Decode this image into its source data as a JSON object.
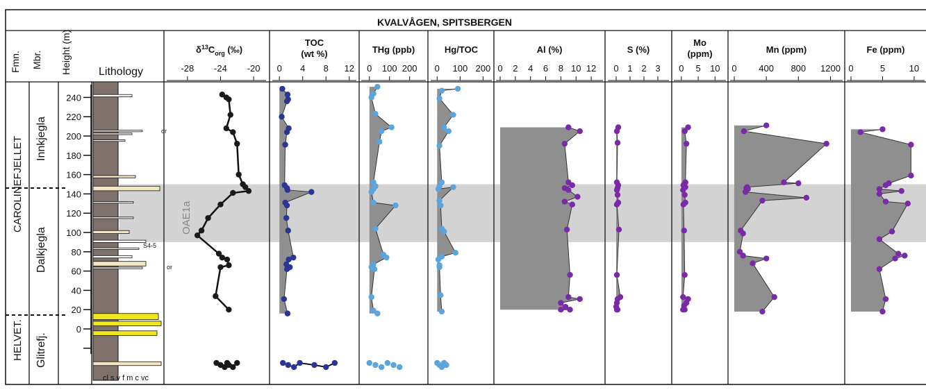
{
  "title": "KVALVÅGEN, SPITSBERGEN",
  "columns": {
    "fmn": "Fmn.",
    "mbr": "Mbr.",
    "height": "Height (m)",
    "lithology": "Lithology"
  },
  "formations": [
    "CAROLINEFJELLET",
    "HELVET."
  ],
  "members": [
    "Innkjegla",
    "Dalkjegla",
    "Glitrefj."
  ],
  "oae_label": "OAE1a",
  "grain_size_scale": "cl s v f m c vc",
  "height_ticks": [
    "240",
    "220",
    "200",
    "180",
    "160",
    "140",
    "120",
    "100",
    "80",
    "60",
    "40",
    "20",
    "0"
  ],
  "fossil_label": "or",
  "sulfur_label": "S4-5",
  "colors": {
    "d13c": "#1a1a1a",
    "toc": "#2b3596",
    "hg": "#5ba4dc",
    "elements": "#7a2aa6",
    "fill": "#8f8f8f",
    "oae_band": "#d3d3d3",
    "mudstone": "#7e716c",
    "sandstone": "#f0e81c"
  },
  "chart_data": {
    "type": "line",
    "y_axis": {
      "label": "Height (m)",
      "range": [
        -30,
        250
      ]
    },
    "oae_interval_m": [
      90,
      150
    ],
    "panels": [
      {
        "key": "d13c",
        "label_main": "δ",
        "label_sup": "13",
        "label_c": "C",
        "label_sub": "org",
        "label_tail": " (‰)",
        "xlim": [
          -30,
          -19
        ],
        "ticks": [
          "-28",
          "-24",
          "-20"
        ],
        "tick_values": [
          -28,
          -24,
          -20
        ],
        "x": [
          -23.8,
          -23.3,
          -23.0,
          -22.8,
          -23.3,
          -22.5,
          -22.0,
          -21.8,
          -21.3,
          -21.0,
          -20.6,
          -22.5,
          -24.0,
          -25.5,
          -26.3,
          -26.8,
          -24.2,
          -23.8,
          -23.2,
          -23.0,
          -24.0,
          -24.6,
          -23.0
        ],
        "y": [
          243,
          240,
          238,
          222,
          208,
          204,
          192,
          160,
          150,
          147,
          143,
          141,
          129,
          115,
          102,
          97,
          78,
          74,
          72,
          66,
          64,
          34,
          20
        ],
        "glitrefjellet_x": [
          -24.5,
          -24.0,
          -23.5,
          -23.2,
          -23.0,
          -22.5,
          -22.0
        ]
      },
      {
        "key": "toc",
        "label_main": "TOC",
        "label_sub2": "(wt %)",
        "xlim": [
          -0.5,
          12.5
        ],
        "ticks": [
          "0",
          "4",
          "8",
          "12"
        ],
        "tick_values": [
          0,
          4,
          8,
          12
        ],
        "x": [
          0.5,
          1.4,
          1.5,
          1.3,
          0.4,
          1.6,
          1.3,
          1.0,
          0.9,
          1.3,
          1.4,
          5.5,
          1.0,
          1.3,
          1.2,
          1.5,
          2.4,
          1.6,
          1.2,
          1.8,
          1.3,
          0.8,
          1.4
        ],
        "y": [
          249,
          243,
          238,
          236,
          220,
          208,
          204,
          191,
          149,
          146,
          144,
          142,
          131,
          128,
          115,
          102,
          74,
          72,
          67,
          64,
          62,
          31,
          16
        ],
        "glitrefjellet_x": [
          0.6,
          1.5,
          2.5,
          3.5,
          6.0,
          8.0,
          9.5
        ]
      },
      {
        "key": "thg",
        "label_main": "THg (ppb)",
        "xlim": [
          -20,
          260
        ],
        "ticks": [
          "0",
          "100",
          "200"
        ],
        "tick_values": [
          0,
          100,
          200
        ],
        "x": [
          40,
          20,
          10,
          30,
          110,
          60,
          50,
          20,
          30,
          20,
          10,
          20,
          130,
          30,
          70,
          85,
          20,
          10,
          25,
          10,
          20,
          40
        ],
        "y": [
          251,
          244,
          240,
          223,
          209,
          205,
          194,
          152,
          148,
          145,
          142,
          131,
          128,
          104,
          77,
          74,
          67,
          64,
          62,
          33,
          19,
          16
        ],
        "glitrefjellet_x": [
          0,
          30,
          60,
          90,
          120,
          150
        ]
      },
      {
        "key": "hgtoc",
        "label_main": "Hg/TOC",
        "xlim": [
          -10,
          220
        ],
        "ticks": [
          "0",
          "100",
          "200"
        ],
        "tick_values": [
          0,
          100,
          200
        ],
        "x": [
          90,
          20,
          10,
          70,
          30,
          50,
          10,
          20,
          10,
          5,
          70,
          10,
          15,
          20,
          30,
          80,
          20,
          5,
          10,
          10,
          15,
          20
        ],
        "y": [
          249,
          247,
          239,
          222,
          209,
          205,
          190,
          152,
          148,
          145,
          147,
          133,
          128,
          104,
          101,
          79,
          75,
          72,
          66,
          64,
          35,
          18
        ],
        "glitrefjellet_x": [
          0,
          10,
          20,
          30,
          40
        ]
      },
      {
        "key": "al",
        "label_main": "Al (%)",
        "xlim": [
          0,
          13
        ],
        "ticks": [
          "0",
          "2",
          "4",
          "6",
          "8",
          "10",
          "12"
        ],
        "tick_values": [
          0,
          2,
          4,
          6,
          8,
          10,
          12
        ],
        "x": [
          9.0,
          10.5,
          8.5,
          9.0,
          9.5,
          8.5,
          9.0,
          10.2,
          8.5,
          9.5,
          8.8,
          9.2,
          9.0,
          10.5,
          8.0,
          8.6,
          9.2,
          8.0
        ],
        "y": [
          209,
          205,
          192,
          152,
          149,
          146,
          144,
          137,
          132,
          129,
          103,
          56,
          33,
          31,
          27,
          23,
          20,
          20
        ]
      },
      {
        "key": "s",
        "label_main": "S (%)",
        "xlim": [
          -0.3,
          3.5
        ],
        "ticks": [
          "0",
          "1",
          "2",
          "3"
        ],
        "tick_values": [
          0,
          1,
          2,
          3
        ],
        "x": [
          0.15,
          0.05,
          0.1,
          0.05,
          0.15,
          0.1,
          0.05,
          0.1,
          0.15,
          0.05,
          0.2,
          0.05,
          0.3,
          0.1,
          0.05,
          0.0,
          0.1,
          0.05
        ],
        "y": [
          209,
          205,
          193,
          152,
          149,
          146,
          144,
          139,
          131,
          129,
          103,
          56,
          33,
          31,
          27,
          23,
          20,
          20
        ]
      },
      {
        "key": "mo",
        "label_main": "Mo",
        "label_sub2": "(ppm)",
        "xlim": [
          -1,
          12
        ],
        "ticks": [
          "0",
          "5",
          "10"
        ],
        "tick_values": [
          0,
          5,
          10
        ],
        "x": [
          2.0,
          1.0,
          1.5,
          1.2,
          0.6,
          1.2,
          0.5,
          1.0,
          1.2,
          0.6,
          0.8,
          1.0,
          0.5,
          2.0,
          1.5,
          0.8,
          1.0,
          0.5
        ],
        "y": [
          209,
          205,
          192,
          152,
          149,
          147,
          144,
          139,
          131,
          129,
          102,
          56,
          33,
          31,
          27,
          24,
          20,
          20
        ]
      },
      {
        "key": "mn",
        "label_main": "Mn (ppm)",
        "xlim": [
          0,
          1300
        ],
        "ticks": [
          "0",
          "400",
          "800",
          "1200"
        ],
        "tick_values": [
          0,
          400,
          800,
          1200
        ],
        "x": [
          400,
          120,
          1150,
          620,
          800,
          160,
          150,
          170,
          140,
          900,
          350,
          80,
          110,
          70,
          110,
          400,
          230,
          500,
          350
        ],
        "y": [
          211,
          205,
          192,
          152,
          151,
          147,
          146,
          145,
          142,
          136,
          133,
          102,
          99,
          80,
          76,
          73,
          68,
          33,
          18
        ]
      },
      {
        "key": "fe",
        "label_main": "Fe (ppm)",
        "xlim": [
          0,
          11
        ],
        "ticks": [
          "0",
          "5",
          "10"
        ],
        "tick_values": [
          0,
          5,
          10
        ],
        "x": [
          5.0,
          1.5,
          9.5,
          9.5,
          6.0,
          5.5,
          4.5,
          8.0,
          4.5,
          5.5,
          9.0,
          6.5,
          4.5,
          7.5,
          8.5,
          7.0,
          4.5,
          5.5,
          5.0
        ],
        "y": [
          207,
          204,
          191,
          159,
          151,
          149,
          145,
          143,
          140,
          132,
          130,
          101,
          93,
          78,
          76,
          73,
          62,
          31,
          18
        ]
      }
    ]
  }
}
